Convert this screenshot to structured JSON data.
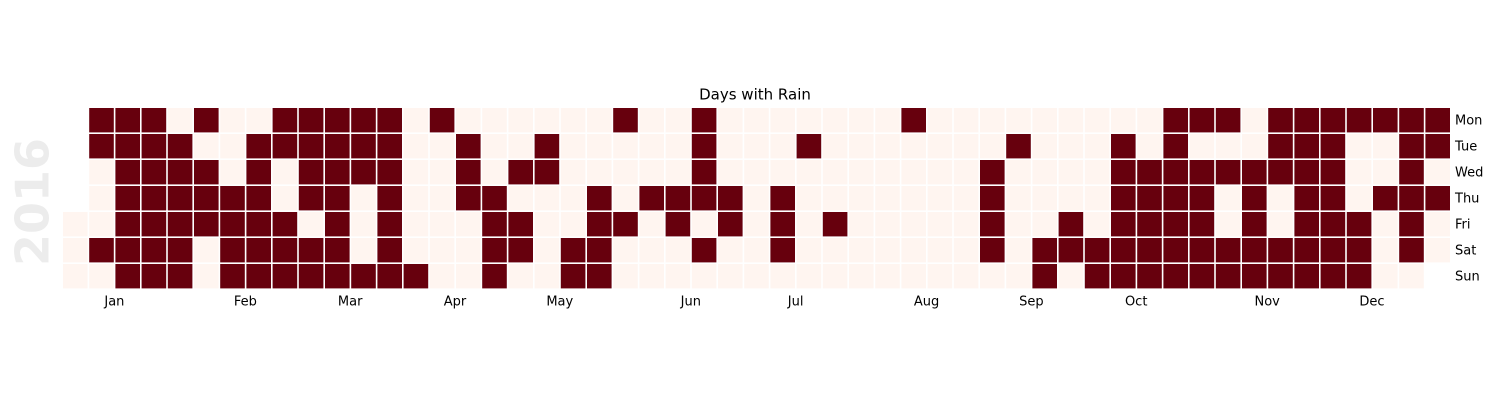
{
  "chart_data": {
    "type": "calendar-heatmap",
    "title": "Days with Rain",
    "year": 2016,
    "rows": [
      "Mon",
      "Tue",
      "Wed",
      "Thu",
      "Fri",
      "Sat",
      "Sun"
    ],
    "months": [
      "Jan",
      "Feb",
      "Mar",
      "Apr",
      "May",
      "Jun",
      "Jul",
      "Aug",
      "Sep",
      "Oct",
      "Nov",
      "Dec"
    ],
    "colors": [
      "#fff5f0",
      "#67000d"
    ],
    "values": [
      [
        null,
        1,
        1,
        1,
        0,
        1,
        0,
        0,
        1,
        1,
        1,
        1,
        1,
        0,
        1,
        0,
        0,
        0,
        0,
        0,
        0,
        1,
        0,
        0,
        1,
        0,
        0,
        0,
        0,
        0,
        0,
        0,
        1,
        0,
        0,
        0,
        0,
        0,
        0,
        0,
        0,
        0,
        1,
        1,
        1,
        0,
        1,
        1,
        1,
        1,
        1,
        1,
        1
      ],
      [
        null,
        1,
        1,
        1,
        1,
        0,
        0,
        1,
        1,
        1,
        1,
        1,
        1,
        0,
        0,
        1,
        0,
        0,
        1,
        0,
        0,
        0,
        0,
        0,
        1,
        0,
        0,
        0,
        1,
        0,
        0,
        0,
        0,
        0,
        0,
        0,
        1,
        0,
        0,
        0,
        1,
        0,
        1,
        0,
        0,
        0,
        1,
        1,
        1,
        0,
        0,
        1,
        1
      ],
      [
        null,
        0,
        1,
        1,
        1,
        1,
        0,
        1,
        0,
        1,
        1,
        1,
        1,
        0,
        0,
        1,
        0,
        1,
        1,
        0,
        0,
        0,
        0,
        0,
        1,
        0,
        0,
        0,
        0,
        0,
        0,
        0,
        0,
        0,
        0,
        1,
        0,
        0,
        0,
        0,
        1,
        1,
        1,
        1,
        1,
        1,
        1,
        1,
        1,
        0,
        0,
        1,
        0
      ],
      [
        null,
        0,
        1,
        1,
        1,
        1,
        1,
        1,
        0,
        1,
        1,
        0,
        1,
        0,
        0,
        1,
        1,
        0,
        0,
        0,
        1,
        0,
        1,
        1,
        1,
        1,
        0,
        1,
        0,
        0,
        0,
        0,
        0,
        0,
        0,
        1,
        0,
        0,
        0,
        0,
        1,
        1,
        1,
        1,
        0,
        1,
        0,
        1,
        1,
        0,
        1,
        1,
        1
      ],
      [
        0,
        0,
        1,
        1,
        1,
        1,
        1,
        1,
        1,
        0,
        1,
        0,
        1,
        0,
        0,
        0,
        1,
        1,
        0,
        0,
        1,
        1,
        0,
        1,
        0,
        1,
        0,
        1,
        0,
        1,
        0,
        0,
        0,
        0,
        0,
        1,
        0,
        0,
        1,
        0,
        1,
        1,
        1,
        1,
        0,
        1,
        0,
        1,
        1,
        1,
        0,
        1,
        0
      ],
      [
        0,
        1,
        1,
        1,
        1,
        0,
        1,
        1,
        1,
        1,
        1,
        0,
        1,
        0,
        0,
        0,
        1,
        1,
        0,
        1,
        1,
        0,
        0,
        0,
        1,
        0,
        0,
        1,
        0,
        0,
        0,
        0,
        0,
        0,
        0,
        1,
        0,
        1,
        1,
        1,
        1,
        1,
        1,
        1,
        1,
        1,
        1,
        1,
        1,
        1,
        0,
        1,
        0
      ],
      [
        0,
        0,
        1,
        1,
        1,
        0,
        1,
        1,
        1,
        1,
        1,
        1,
        1,
        1,
        0,
        0,
        1,
        0,
        0,
        1,
        1,
        0,
        0,
        0,
        0,
        0,
        0,
        0,
        0,
        0,
        0,
        0,
        0,
        0,
        0,
        0,
        0,
        1,
        0,
        1,
        1,
        1,
        1,
        1,
        1,
        1,
        1,
        1,
        1,
        1,
        0,
        0,
        null
      ]
    ]
  }
}
